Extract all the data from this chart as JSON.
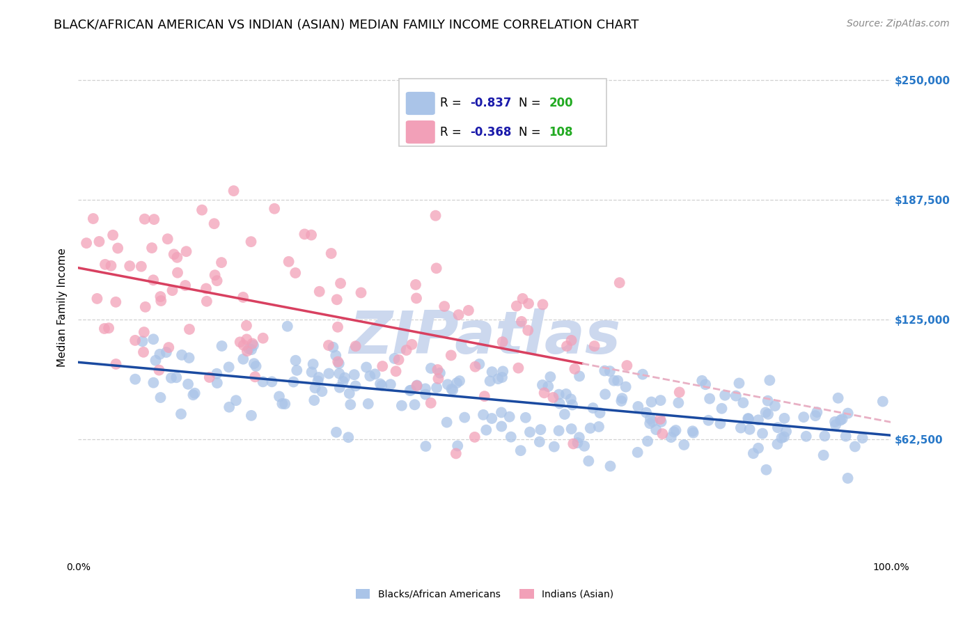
{
  "title": "BLACK/AFRICAN AMERICAN VS INDIAN (ASIAN) MEDIAN FAMILY INCOME CORRELATION CHART",
  "source": "Source: ZipAtlas.com",
  "ylabel": "Median Family Income",
  "xlim": [
    0,
    1
  ],
  "ylim": [
    0,
    262500
  ],
  "yticks": [
    62500,
    125000,
    187500,
    250000
  ],
  "ytick_labels": [
    "$62,500",
    "$125,000",
    "$187,500",
    "$250,000"
  ],
  "blue_R": -0.837,
  "blue_N": 200,
  "pink_R": -0.368,
  "pink_N": 108,
  "blue_color": "#aac4e8",
  "blue_line_color": "#1a4aa0",
  "pink_color": "#f2a0b8",
  "pink_line_color": "#d84060",
  "pink_dash_color": "#e8b0c4",
  "watermark_color": "#ccd8ee",
  "background_color": "#ffffff",
  "title_fontsize": 13,
  "source_fontsize": 10,
  "ylabel_fontsize": 11,
  "tick_fontsize": 10,
  "ytick_right_color": "#2878c8",
  "legend_R_color": "#1a1aaa",
  "legend_N_color": "#22aa22",
  "legend_blue_fill": "#aac4e8",
  "legend_pink_fill": "#f2a0b8"
}
